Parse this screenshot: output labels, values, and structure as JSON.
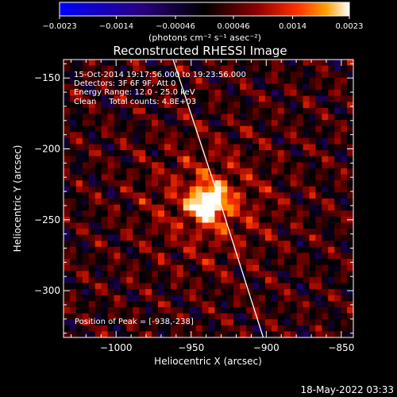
{
  "chart_data": {
    "type": "heatmap",
    "title": "Reconstructed RHESSI Image",
    "xlabel": "Heliocentric X (arcsec)",
    "ylabel": "Heliocentric Y (arcsec)",
    "xlim": [
      -1035,
      -842
    ],
    "ylim": [
      -333,
      -137
    ],
    "x_ticks": [
      -1000,
      -950,
      -900,
      -850
    ],
    "x_tick_labels": [
      "−1000",
      "−950",
      "−900",
      "−850"
    ],
    "y_ticks": [
      -150,
      -200,
      -250,
      -300
    ],
    "y_tick_labels": [
      "−150",
      "−200",
      "−250",
      "−300"
    ],
    "colorbar": {
      "range": [
        -0.0023,
        0.0023
      ],
      "ticks": [
        -0.0023,
        -0.0014,
        -0.00046,
        0.00046,
        0.0014,
        0.0023
      ],
      "tick_labels": [
        "−0.0023",
        "−0.0014",
        "−0.00046",
        "0.00046",
        "0.0014",
        "0.0023"
      ],
      "unit_label": "(photons cm⁻² s⁻¹ asec⁻²)",
      "colors": [
        "#0000ff",
        "#2a0080",
        "#000000",
        "#8a0000",
        "#ff3000",
        "#ffa000",
        "#ffffff"
      ]
    },
    "annotations": [
      "15-Oct-2014 19:17:56.000 to 19:23:56.000",
      "Detectors: 3F 6F 9F, Att 0",
      "Energy Range: 12.0 - 25.0 keV",
      "Clean     Total counts: 4.8E+03"
    ],
    "peak_label": "Position of Peak = [-938,-238]",
    "peak": {
      "x": -938,
      "y": -238,
      "value": 0.0023
    },
    "limb": [
      [
        -962,
        -137
      ],
      [
        -930,
        -240
      ],
      [
        -902,
        -333
      ]
    ]
  },
  "footer": {
    "timestamp": "18-May-2022 03:33"
  }
}
